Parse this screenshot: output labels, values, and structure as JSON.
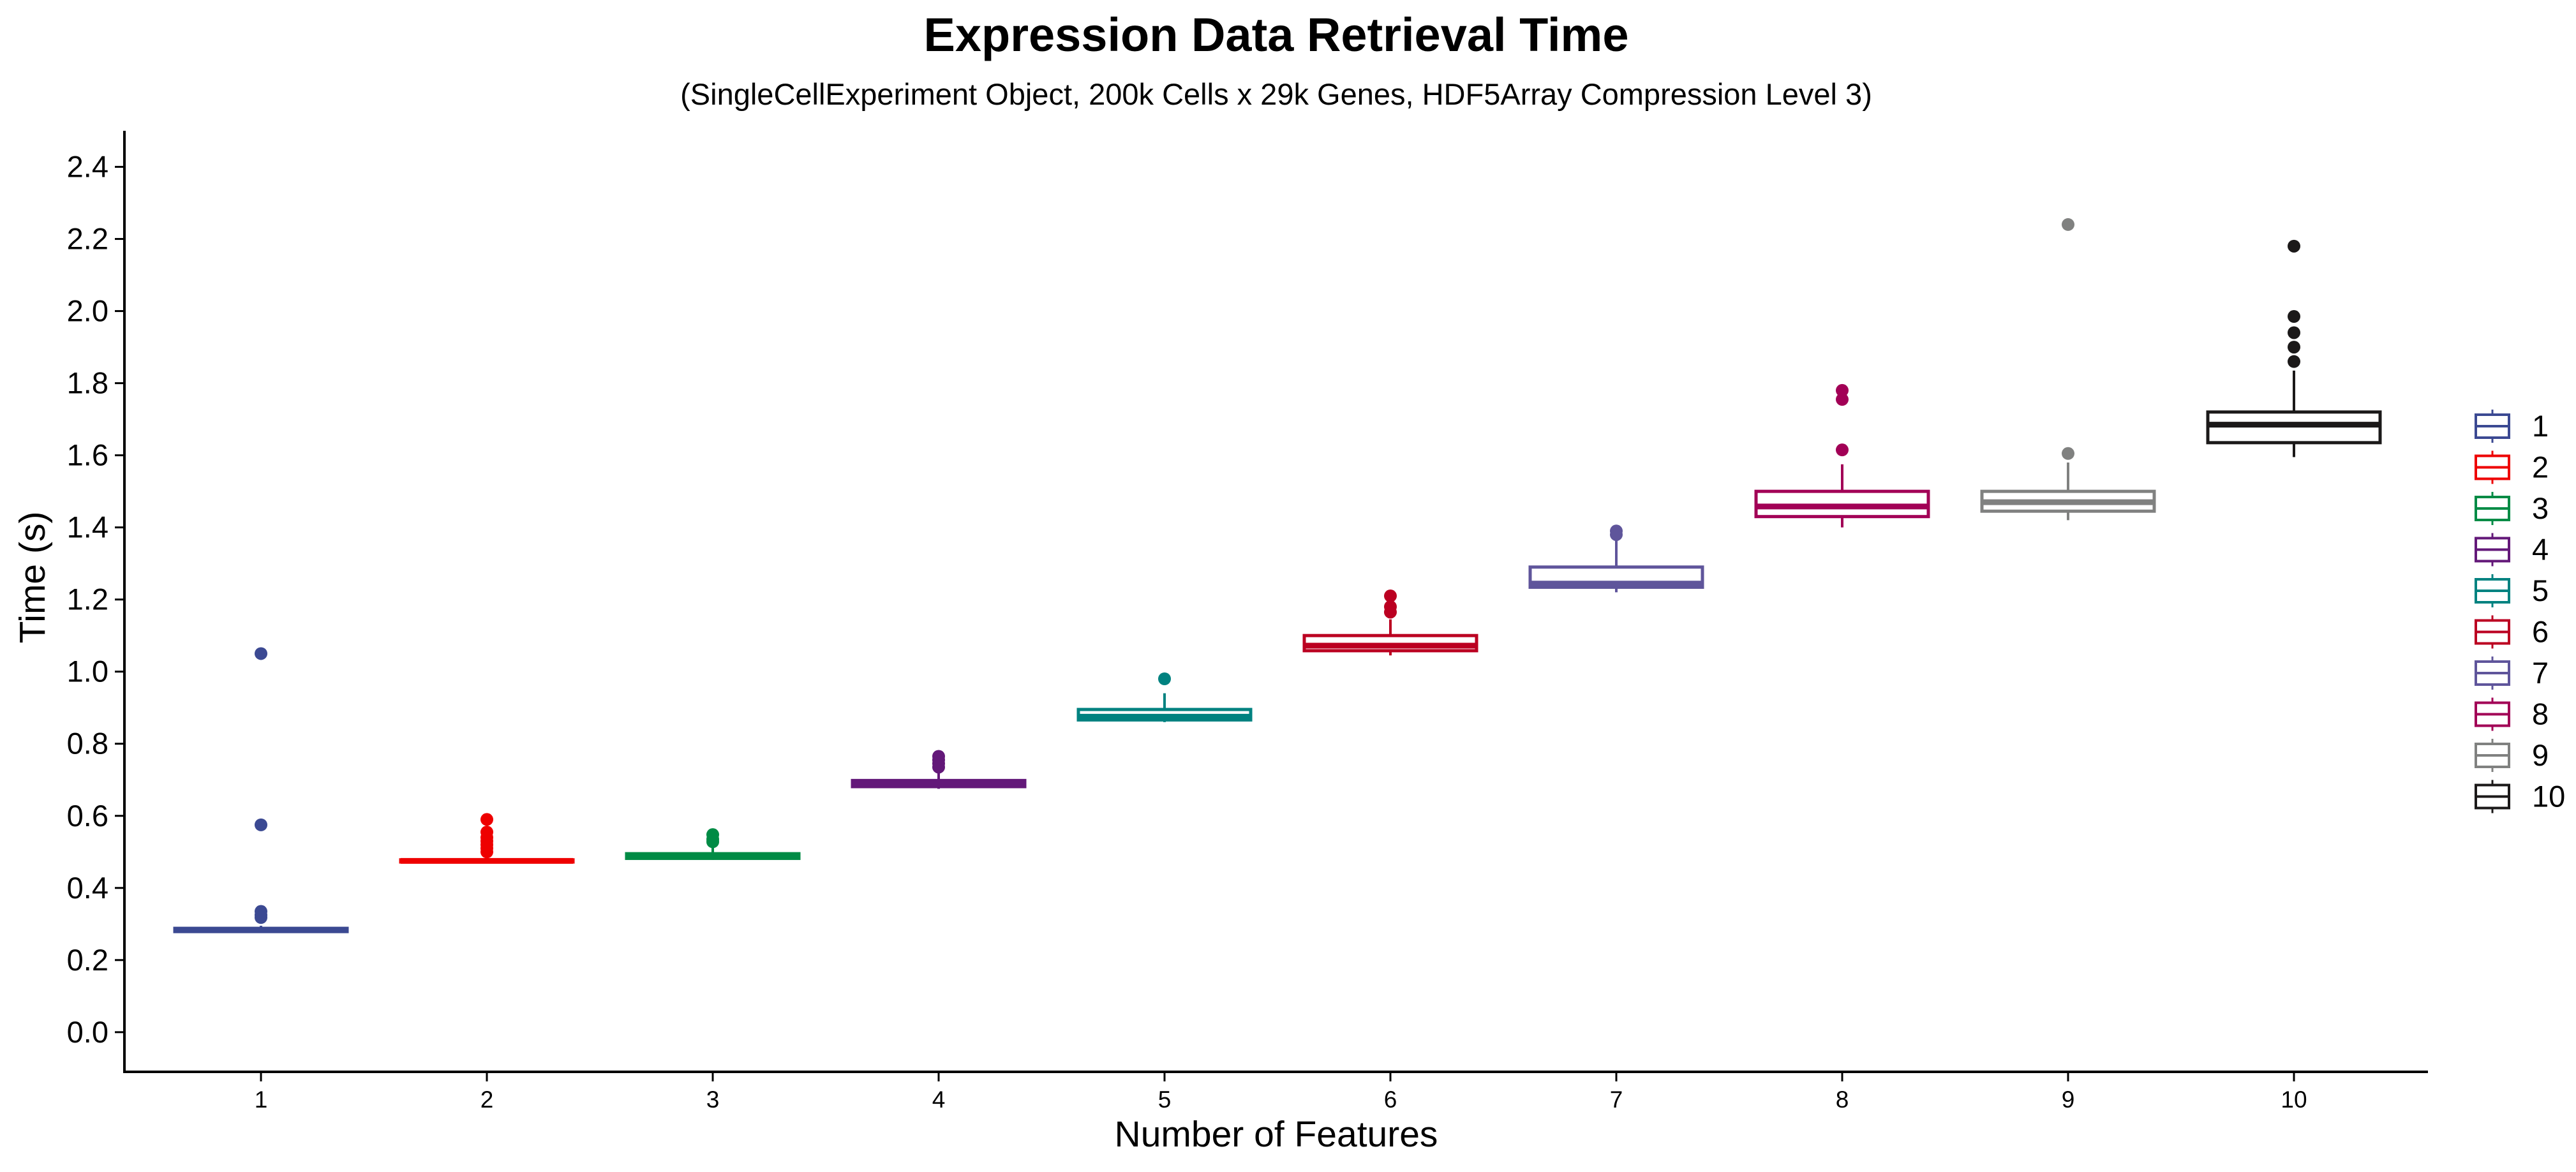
{
  "chart_data": {
    "type": "box",
    "title": "Expression Data Retrieval Time",
    "subtitle": "(SingleCellExperiment Object, 200k Cells x 29k Genes, HDF5Array Compression Level 3)",
    "xlabel": "Number of Features",
    "ylabel": "Time (s)",
    "ylim": [
      -0.11,
      2.5
    ],
    "yticks": [
      "0.0",
      "0.2",
      "0.4",
      "0.6",
      "0.8",
      "1.0",
      "1.2",
      "1.4",
      "1.6",
      "1.8",
      "2.0",
      "2.2",
      "2.4"
    ],
    "categories": [
      "1",
      "2",
      "3",
      "4",
      "5",
      "6",
      "7",
      "8",
      "9",
      "10"
    ],
    "grid": false,
    "legend_position": "right",
    "series": [
      {
        "name": "1",
        "color": "#3B4992",
        "whisker_low": 0.275,
        "q1": 0.279,
        "median": 0.283,
        "q3": 0.288,
        "whisker_high": 0.295,
        "outliers": [
          1.05,
          0.575,
          0.335,
          0.325,
          0.318
        ]
      },
      {
        "name": "2",
        "color": "#EE0000",
        "whisker_low": 0.468,
        "q1": 0.472,
        "median": 0.475,
        "q3": 0.478,
        "whisker_high": 0.49,
        "outliers": [
          0.59,
          0.555,
          0.54,
          0.53,
          0.52,
          0.51,
          0.5
        ]
      },
      {
        "name": "3",
        "color": "#008B45",
        "whisker_low": 0.478,
        "q1": 0.482,
        "median": 0.487,
        "q3": 0.495,
        "whisker_high": 0.515,
        "outliers": [
          0.548,
          0.535,
          0.528
        ]
      },
      {
        "name": "4",
        "color": "#631879",
        "whisker_low": 0.675,
        "q1": 0.681,
        "median": 0.687,
        "q3": 0.698,
        "whisker_high": 0.718,
        "outliers": [
          0.765,
          0.755,
          0.745,
          0.735
        ]
      },
      {
        "name": "5",
        "color": "#008280",
        "whisker_low": 0.86,
        "q1": 0.866,
        "median": 0.875,
        "q3": 0.895,
        "whisker_high": 0.94,
        "outliers": [
          0.98
        ]
      },
      {
        "name": "6",
        "color": "#BB0021",
        "whisker_low": 1.045,
        "q1": 1.058,
        "median": 1.072,
        "q3": 1.1,
        "whisker_high": 1.145,
        "outliers": [
          1.21,
          1.18,
          1.165
        ]
      },
      {
        "name": "7",
        "color": "#5F559B",
        "whisker_low": 1.22,
        "q1": 1.234,
        "median": 1.244,
        "q3": 1.29,
        "whisker_high": 1.365,
        "outliers": [
          1.39,
          1.38
        ]
      },
      {
        "name": "8",
        "color": "#A20056",
        "whisker_low": 1.4,
        "q1": 1.43,
        "median": 1.458,
        "q3": 1.5,
        "whisker_high": 1.575,
        "outliers": [
          1.78,
          1.755,
          1.615
        ]
      },
      {
        "name": "9",
        "color": "#808180",
        "whisker_low": 1.42,
        "q1": 1.445,
        "median": 1.47,
        "q3": 1.5,
        "whisker_high": 1.58,
        "outliers": [
          2.24,
          1.605
        ]
      },
      {
        "name": "10",
        "color": "#1B1919",
        "whisker_low": 1.595,
        "q1": 1.635,
        "median": 1.685,
        "q3": 1.72,
        "whisker_high": 1.835,
        "outliers": [
          2.18,
          1.985,
          1.94,
          1.9,
          1.86
        ]
      }
    ]
  }
}
